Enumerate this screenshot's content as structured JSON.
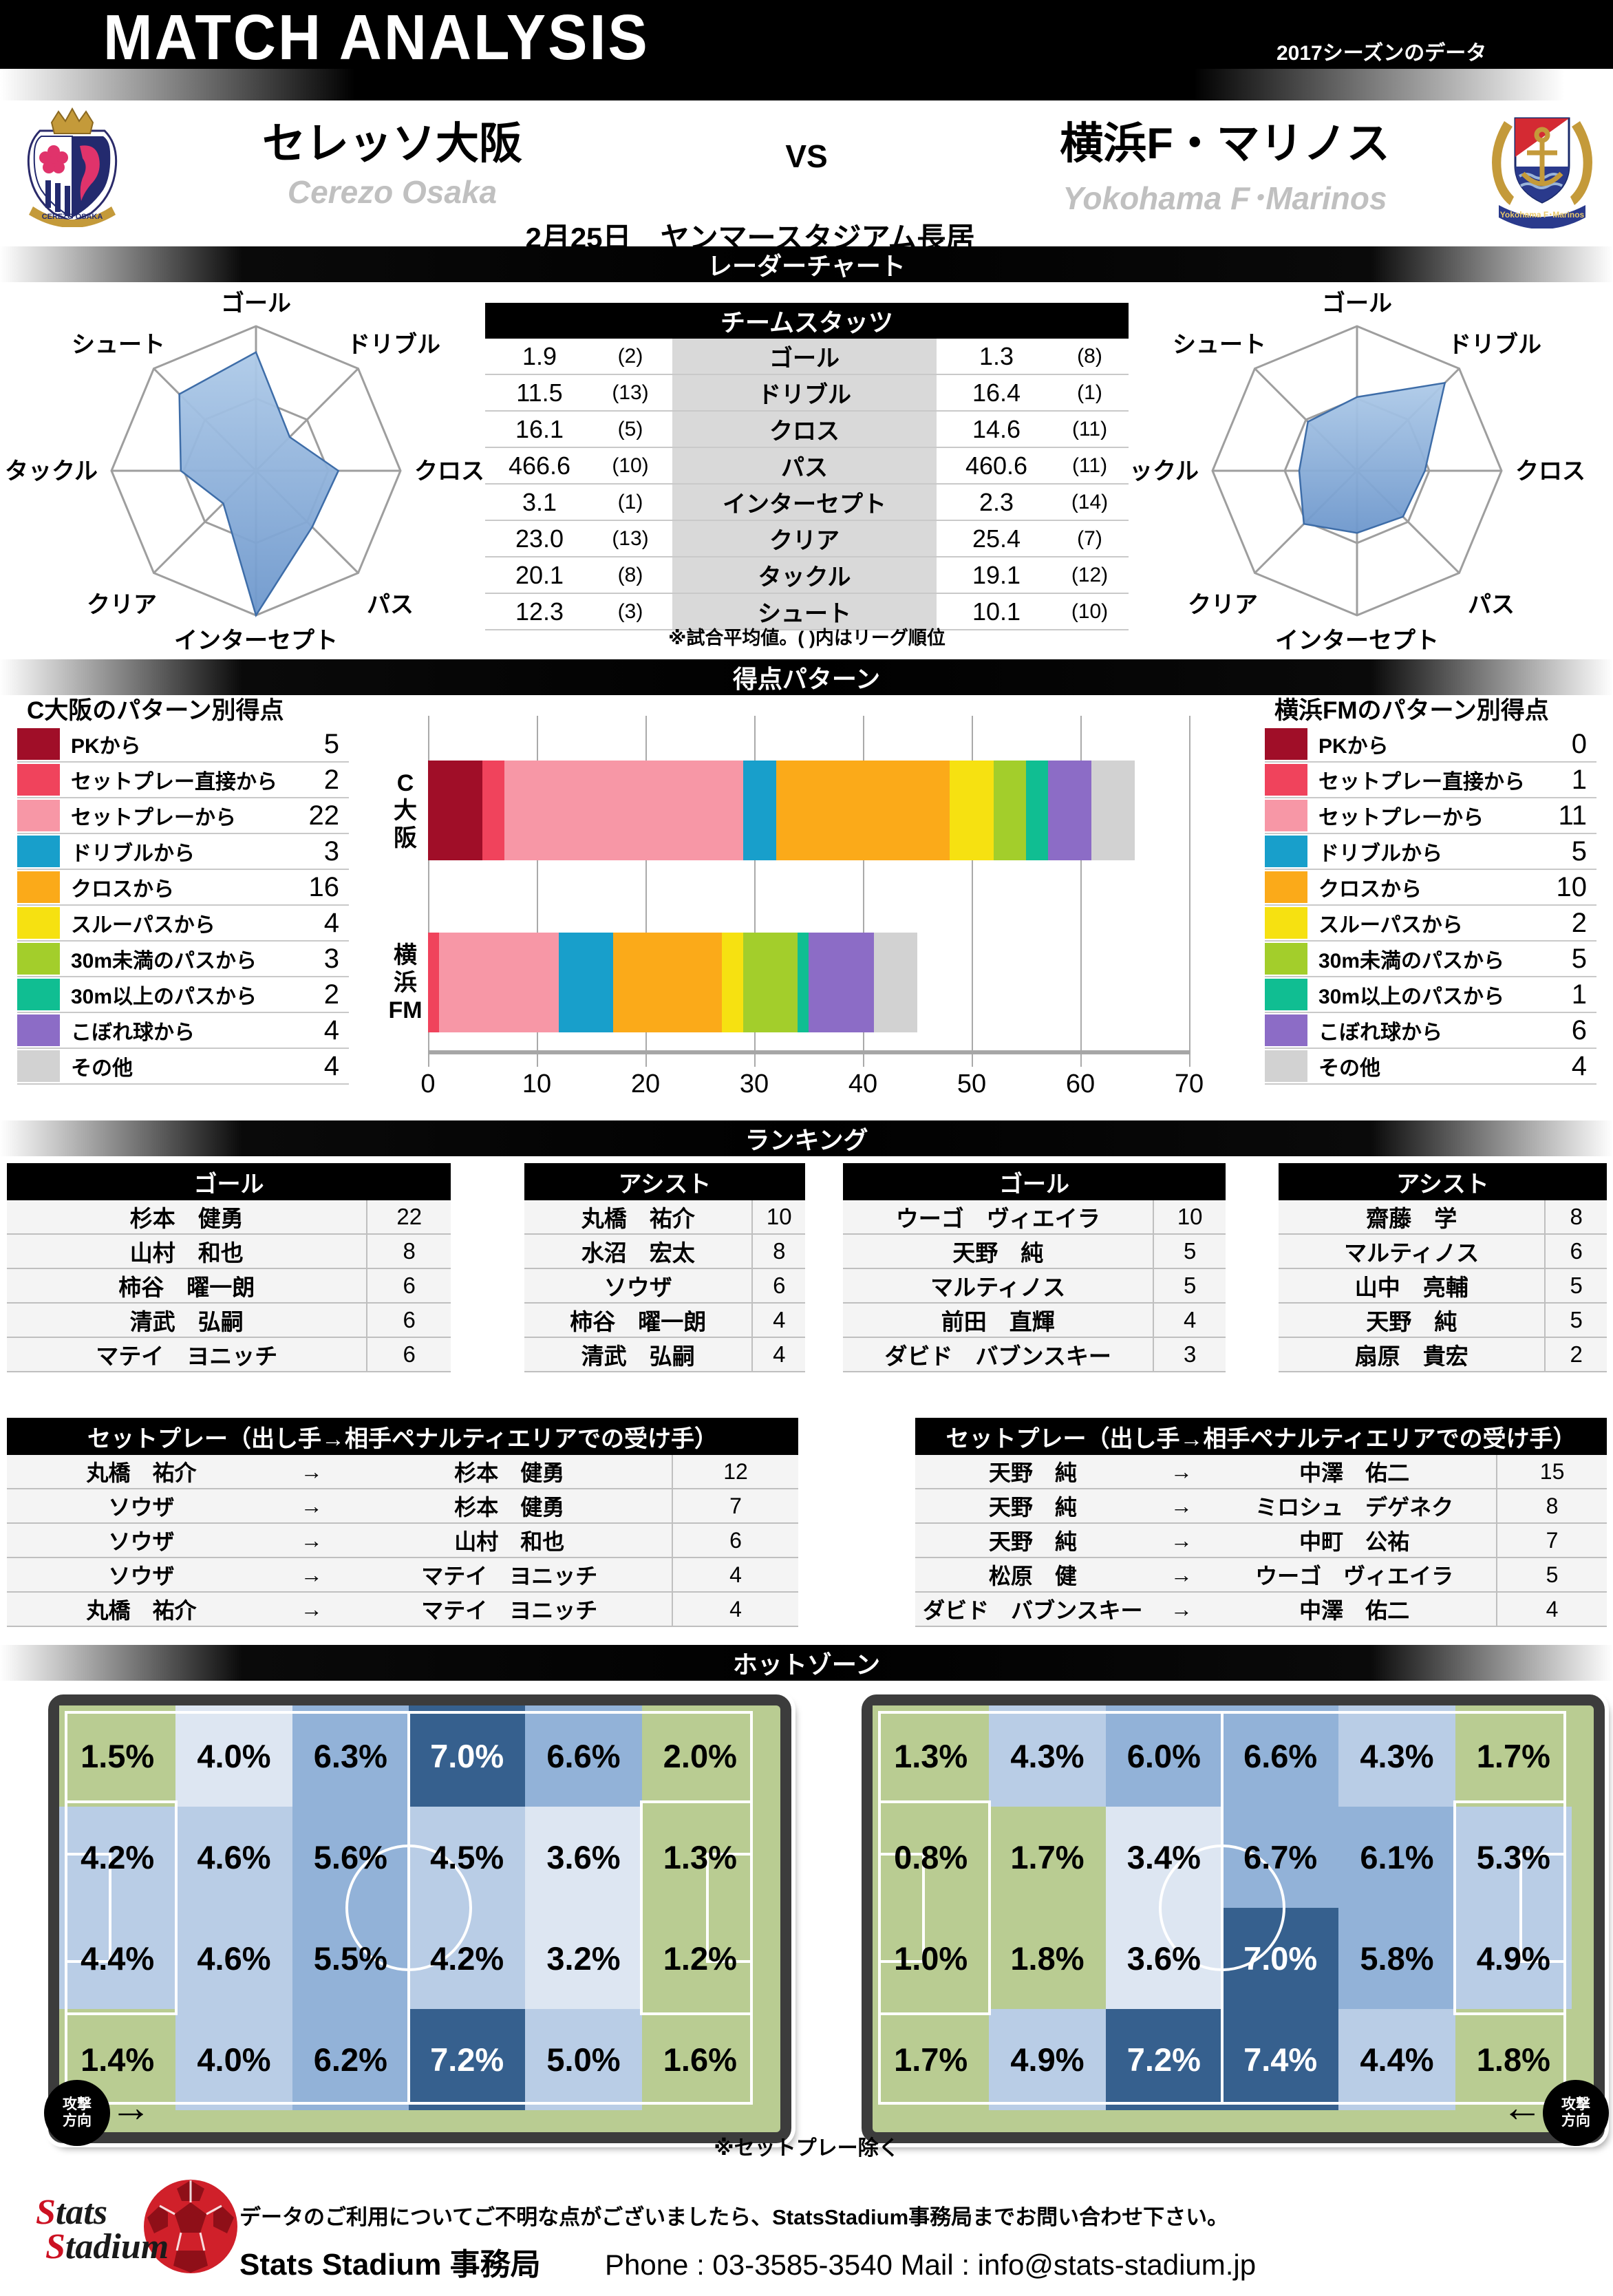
{
  "header": {
    "title": "MATCH ANALYSIS",
    "season_note": "2017シーズンのデータ"
  },
  "match": {
    "home_name": "セレッソ大阪",
    "home_name_en": "Cerezo Osaka",
    "away_name": "横浜F・マリノス",
    "away_name_en": "Yokohama F･Marinos",
    "vs": "VS",
    "date_venue": "2月25日　ヤンマースタジアム長居"
  },
  "crests": {
    "home_banner": "CEREZO OSAKA",
    "away_banner": "Yokohama F･Marinos"
  },
  "sections": {
    "radar": "レーダーチャート",
    "scoring": "得点パターン",
    "ranking": "ランキング",
    "hotzone": "ホットゾーン"
  },
  "team_stats": {
    "header": "チームスタッツ",
    "note": "※試合平均値。( )内はリーグ順位",
    "rows": [
      {
        "home": "1.9",
        "home_rank": "(2)",
        "label": "ゴール",
        "away": "1.3",
        "away_rank": "(8)"
      },
      {
        "home": "11.5",
        "home_rank": "(13)",
        "label": "ドリブル",
        "away": "16.4",
        "away_rank": "(1)"
      },
      {
        "home": "16.1",
        "home_rank": "(5)",
        "label": "クロス",
        "away": "14.6",
        "away_rank": "(11)"
      },
      {
        "home": "466.6",
        "home_rank": "(10)",
        "label": "パス",
        "away": "460.6",
        "away_rank": "(11)"
      },
      {
        "home": "3.1",
        "home_rank": "(1)",
        "label": "インターセプト",
        "away": "2.3",
        "away_rank": "(14)"
      },
      {
        "home": "23.0",
        "home_rank": "(13)",
        "label": "クリア",
        "away": "25.4",
        "away_rank": "(7)"
      },
      {
        "home": "20.1",
        "home_rank": "(8)",
        "label": "タックル",
        "away": "19.1",
        "away_rank": "(12)"
      },
      {
        "home": "12.3",
        "home_rank": "(3)",
        "label": "シュート",
        "away": "10.1",
        "away_rank": "(10)"
      }
    ]
  },
  "chart_data": [
    {
      "type": "radar",
      "title": "レーダーチャート",
      "axes": [
        "ゴール",
        "ドリブル",
        "クロス",
        "パス",
        "インターセプト",
        "クリア",
        "タックル",
        "シュート"
      ],
      "series": [
        {
          "name": "セレッソ大阪",
          "values": [
            0.82,
            0.33,
            0.57,
            0.55,
            1.0,
            0.32,
            0.52,
            0.75
          ]
        },
        {
          "name": "横浜F・マリノス",
          "values": [
            0.51,
            0.86,
            0.47,
            0.45,
            0.43,
            0.52,
            0.4,
            0.48
          ]
        }
      ],
      "note": "values normalized 0-1 from league ranks shown in team stats"
    },
    {
      "type": "bar",
      "title": "得点パターン",
      "stacked": true,
      "orientation": "horizontal",
      "categories": [
        "C大阪",
        "横浜FM"
      ],
      "series": [
        {
          "name": "PKから",
          "values": [
            5,
            0
          ]
        },
        {
          "name": "セットプレー直接から",
          "values": [
            2,
            1
          ]
        },
        {
          "name": "セットプレーから",
          "values": [
            22,
            11
          ]
        },
        {
          "name": "ドリブルから",
          "values": [
            3,
            5
          ]
        },
        {
          "name": "クロスから",
          "values": [
            16,
            10
          ]
        },
        {
          "name": "スルーパスから",
          "values": [
            4,
            2
          ]
        },
        {
          "name": "30m未満のパスから",
          "values": [
            3,
            5
          ]
        },
        {
          "name": "30m以上のパスから",
          "values": [
            2,
            1
          ]
        },
        {
          "name": "こぼれ球から",
          "values": [
            4,
            6
          ]
        },
        {
          "name": "その他",
          "values": [
            4,
            4
          ]
        }
      ],
      "xlim": [
        0,
        70
      ],
      "x_ticks": [
        0,
        10,
        20,
        30,
        40,
        50,
        60,
        70
      ]
    },
    {
      "type": "heatmap",
      "title": "ホットゾーン C大阪",
      "values": [
        [
          1.5,
          4.0,
          6.3,
          7.0,
          6.6,
          2.0
        ],
        [
          4.2,
          4.6,
          5.6,
          4.5,
          3.6,
          1.3
        ],
        [
          4.4,
          4.6,
          5.5,
          4.2,
          3.2,
          1.2
        ],
        [
          1.4,
          4.0,
          6.2,
          7.2,
          5.0,
          1.6
        ]
      ]
    },
    {
      "type": "heatmap",
      "title": "ホットゾーン 横浜FM",
      "values": [
        [
          1.3,
          4.3,
          6.0,
          6.6,
          4.3,
          1.7
        ],
        [
          0.8,
          1.7,
          3.4,
          6.7,
          6.1,
          5.3
        ],
        [
          1.0,
          1.8,
          3.6,
          7.0,
          5.8,
          4.9
        ],
        [
          1.7,
          4.9,
          7.2,
          7.4,
          4.4,
          1.8
        ]
      ]
    }
  ],
  "radar": {
    "axes": [
      "ゴール",
      "ドリブル",
      "クロス",
      "パス",
      "インターセプト",
      "クリア",
      "タックル",
      "シュート"
    ],
    "home_values": [
      0.82,
      0.33,
      0.57,
      0.55,
      1.0,
      0.32,
      0.52,
      0.75
    ],
    "away_values": [
      0.51,
      0.86,
      0.47,
      0.45,
      0.43,
      0.52,
      0.4,
      0.48
    ],
    "grid_color": "#9e9e9e",
    "fill_top": "#aecae8",
    "fill_bottom": "#6d97cc",
    "stroke": "#3e6da8"
  },
  "scoring_patterns": {
    "home_title": "C大阪のパターン別得点",
    "away_title": "横浜FMのパターン別得点",
    "items": [
      {
        "label": "PKから",
        "color": "#a00e28",
        "home": "5",
        "away": "0"
      },
      {
        "label": "セットプレー直接から",
        "color": "#f0435c",
        "home": "2",
        "away": "1"
      },
      {
        "label": "セットプレーから",
        "color": "#f797a6",
        "home": "22",
        "away": "11"
      },
      {
        "label": "ドリブルから",
        "color": "#189fcb",
        "home": "3",
        "away": "5"
      },
      {
        "label": "クロスから",
        "color": "#fbaa19",
        "home": "16",
        "away": "10"
      },
      {
        "label": "スルーパスから",
        "color": "#f6e111",
        "home": "4",
        "away": "2"
      },
      {
        "label": "30m未満のパスから",
        "color": "#a3ce2b",
        "home": "3",
        "away": "5"
      },
      {
        "label": "30m以上のパスから",
        "color": "#10be92",
        "home": "2",
        "away": "1"
      },
      {
        "label": "こぼれ球から",
        "color": "#8c6cc6",
        "home": "4",
        "away": "6"
      },
      {
        "label": "その他",
        "color": "#d2d2d2",
        "home": "4",
        "away": "4"
      }
    ],
    "ticks": [
      "0",
      "10",
      "20",
      "30",
      "40",
      "50",
      "60",
      "70"
    ],
    "cat_home": "C大阪",
    "cat_away_1": "横浜",
    "cat_away_2": "FM"
  },
  "rankings": {
    "home_goals": {
      "title": "ゴール",
      "rows": [
        [
          "杉本　健勇",
          "22"
        ],
        [
          "山村　和也",
          "8"
        ],
        [
          "柿谷　曜一朗",
          "6"
        ],
        [
          "清武　弘嗣",
          "6"
        ],
        [
          "マテイ　ヨニッチ",
          "6"
        ]
      ]
    },
    "home_assists": {
      "title": "アシスト",
      "rows": [
        [
          "丸橋　祐介",
          "10"
        ],
        [
          "水沼　宏太",
          "8"
        ],
        [
          "ソウザ",
          "6"
        ],
        [
          "柿谷　曜一朗",
          "4"
        ],
        [
          "清武　弘嗣",
          "4"
        ]
      ]
    },
    "away_goals": {
      "title": "ゴール",
      "rows": [
        [
          "ウーゴ　ヴィエイラ",
          "10"
        ],
        [
          "天野　純",
          "5"
        ],
        [
          "マルティノス",
          "5"
        ],
        [
          "前田　直輝",
          "4"
        ],
        [
          "ダビド　バブンスキー",
          "3"
        ]
      ]
    },
    "away_assists": {
      "title": "アシスト",
      "rows": [
        [
          "齋藤　学",
          "8"
        ],
        [
          "マルティノス",
          "6"
        ],
        [
          "山中　亮輔",
          "5"
        ],
        [
          "天野　純",
          "5"
        ],
        [
          "扇原　貴宏",
          "2"
        ]
      ]
    }
  },
  "setplays": {
    "title": "セットプレー（出し手→相手ペナルティエリアでの受け手）",
    "arrow": "→",
    "home_rows": [
      [
        "丸橋　祐介",
        "杉本　健勇",
        "12"
      ],
      [
        "ソウザ",
        "杉本　健勇",
        "7"
      ],
      [
        "ソウザ",
        "山村　和也",
        "6"
      ],
      [
        "ソウザ",
        "マテイ　ヨニッチ",
        "4"
      ],
      [
        "丸橋　祐介",
        "マテイ　ヨニッチ",
        "4"
      ]
    ],
    "away_rows": [
      [
        "天野　純",
        "中澤　佑二",
        "15"
      ],
      [
        "天野　純",
        "ミロシュ　デゲネク",
        "8"
      ],
      [
        "天野　純",
        "中町　公祐",
        "7"
      ],
      [
        "松原　健",
        "ウーゴ　ヴィエイラ",
        "5"
      ],
      [
        "ダビド　バブンスキー",
        "中澤　佑二",
        "4"
      ]
    ]
  },
  "hotzones": {
    "note": "※セットプレー除く",
    "attack_line1": "攻撃",
    "attack_line2": "方向",
    "arrow_right": "→",
    "arrow_left": "←",
    "palette": [
      "#b9cc92",
      "#dde6f2",
      "#b9cde6",
      "#92b2d8",
      "#36608e"
    ],
    "home": {
      "values": [
        [
          "1.5%",
          "4.0%",
          "6.3%",
          "7.0%",
          "6.6%",
          "2.0%"
        ],
        [
          "4.2%",
          "4.6%",
          "5.6%",
          "4.5%",
          "3.6%",
          "1.3%"
        ],
        [
          "4.4%",
          "4.6%",
          "5.5%",
          "4.2%",
          "3.2%",
          "1.2%"
        ],
        [
          "1.4%",
          "4.0%",
          "6.2%",
          "7.2%",
          "5.0%",
          "1.6%"
        ]
      ],
      "levels": [
        [
          0,
          1,
          3,
          4,
          3,
          0
        ],
        [
          2,
          2,
          3,
          2,
          1,
          0
        ],
        [
          2,
          2,
          3,
          2,
          1,
          0
        ],
        [
          0,
          2,
          3,
          4,
          2,
          0
        ]
      ]
    },
    "away": {
      "values": [
        [
          "1.3%",
          "4.3%",
          "6.0%",
          "6.6%",
          "4.3%",
          "1.7%"
        ],
        [
          "0.8%",
          "1.7%",
          "3.4%",
          "6.7%",
          "6.1%",
          "5.3%"
        ],
        [
          "1.0%",
          "1.8%",
          "3.6%",
          "7.0%",
          "5.8%",
          "4.9%"
        ],
        [
          "1.7%",
          "4.9%",
          "7.2%",
          "7.4%",
          "4.4%",
          "1.8%"
        ]
      ],
      "levels": [
        [
          0,
          2,
          3,
          3,
          2,
          0
        ],
        [
          0,
          0,
          1,
          3,
          3,
          2
        ],
        [
          0,
          0,
          1,
          4,
          3,
          2
        ],
        [
          0,
          2,
          4,
          4,
          2,
          0
        ]
      ]
    }
  },
  "footer": {
    "logo_word1": "Stats",
    "logo_word2": "Stadium",
    "line1": "データのご利用についてご不明な点がございましたら、StatsStadium事務局までお問い合わせ下さい。",
    "line2_name": "Stats Stadium 事務局",
    "line2_contact": "Phone : 03-3585-3540  Mail : info@stats-stadium.jp"
  }
}
